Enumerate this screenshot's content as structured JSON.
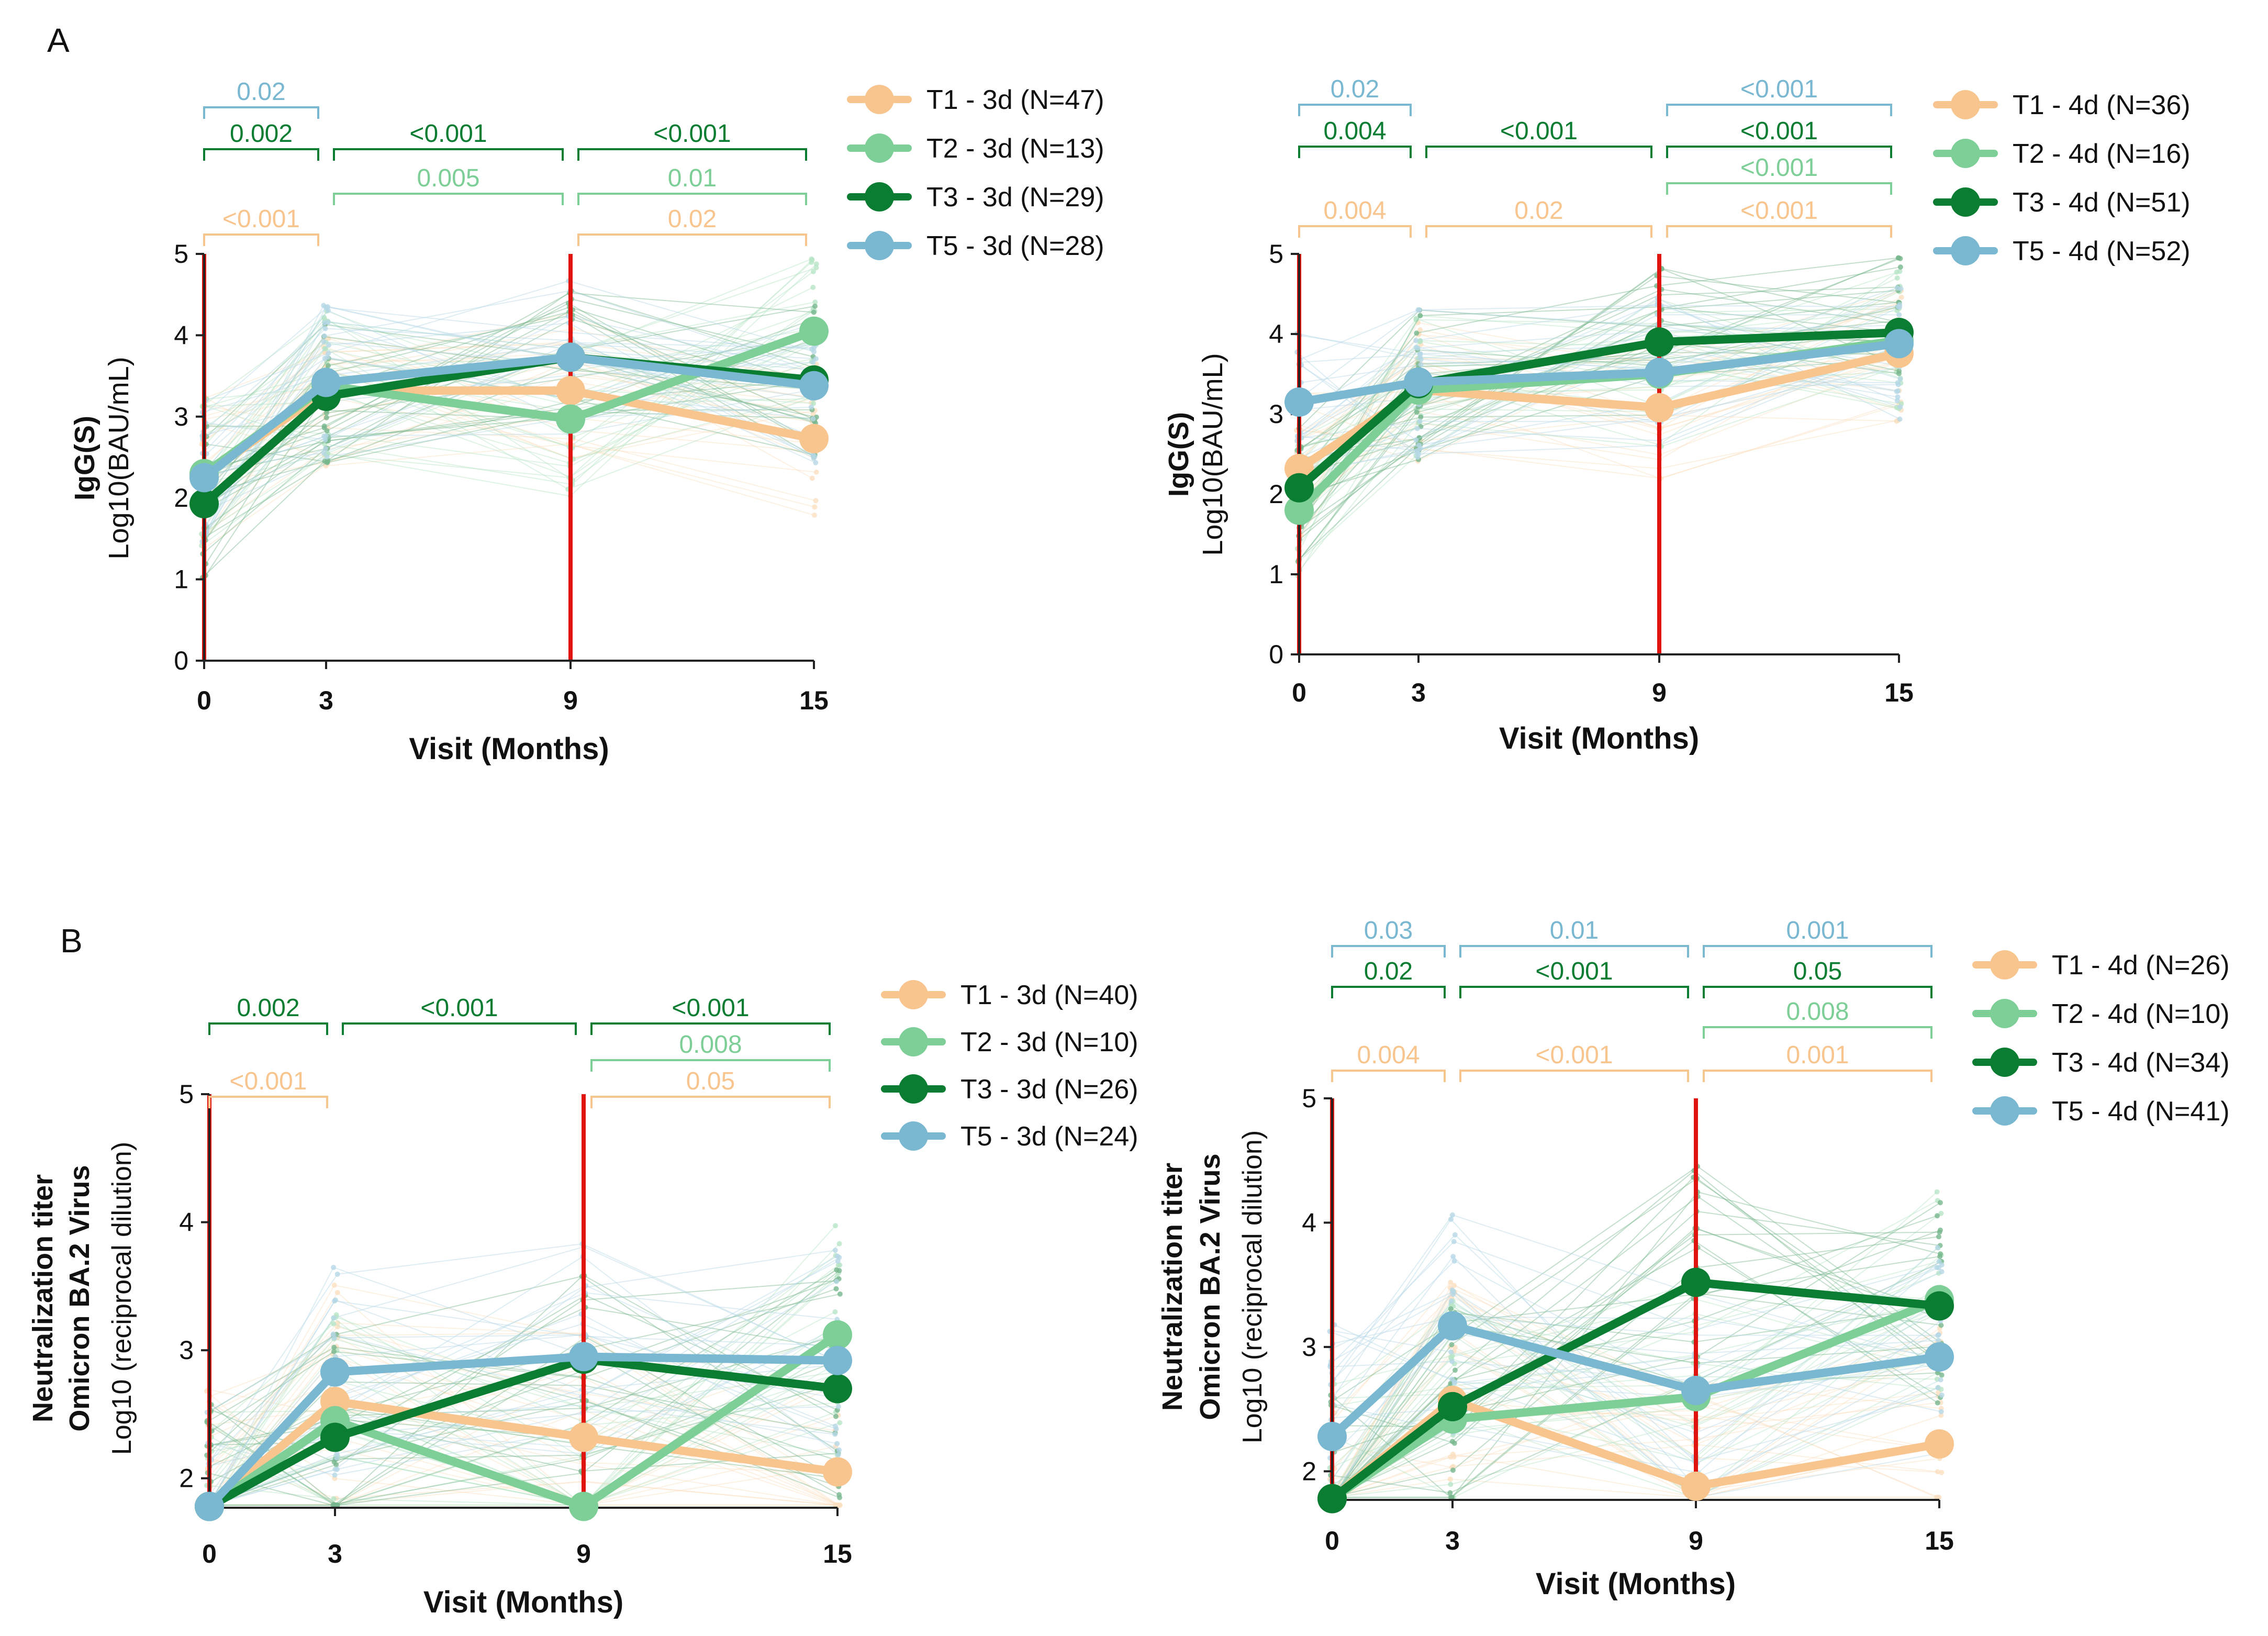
{
  "figure": {
    "panel_labels": [
      "A",
      "B"
    ],
    "colors": {
      "T1": "#f8c58f",
      "T2": "#7dcf97",
      "T3": "#0a7d32",
      "T5": "#7ab8d2",
      "red_line": "#e0140f",
      "axis": "#222222"
    }
  },
  "chart_data": [
    {
      "id": "A-3d",
      "type": "line",
      "ylabel_line1": "IgG(S)",
      "ylabel_line2": "Log10(BAU/mL)",
      "ylabel_sub": "",
      "xlabel": "Visit (Months)",
      "x": [
        0,
        3,
        9,
        15
      ],
      "x_tick_labels": [
        "0",
        "3",
        "9",
        "15"
      ],
      "ylim": [
        0,
        5
      ],
      "y_ticks": [
        0,
        1,
        2,
        3,
        4,
        5
      ],
      "y_tick_labels": [
        "0",
        "1",
        "2",
        "3",
        "4",
        "5"
      ],
      "red_lines_at_x": [
        0,
        9
      ],
      "series": [
        {
          "key": "T1",
          "name": "T1 - 3d (N=47)",
          "values": [
            2.28,
            3.32,
            3.32,
            2.73
          ]
        },
        {
          "key": "T2",
          "name": "T2 - 3d (N=13)",
          "values": [
            2.3,
            3.38,
            2.97,
            4.05
          ]
        },
        {
          "key": "T3",
          "name": "T3 - 3d (N=29)",
          "values": [
            1.93,
            3.25,
            3.73,
            3.45
          ]
        },
        {
          "key": "T5",
          "name": "T5 - 3d (N=28)",
          "values": [
            2.25,
            3.42,
            3.73,
            3.38
          ]
        }
      ],
      "brackets": [
        {
          "x1": 0,
          "x2": 3,
          "row": 0,
          "color": "T5",
          "label": "0.02"
        },
        {
          "x1": 0,
          "x2": 3,
          "row": 1,
          "color": "T3",
          "label": "0.002"
        },
        {
          "x1": 3,
          "x2": 9,
          "row": 1,
          "color": "T3",
          "label": "<0.001"
        },
        {
          "x1": 9,
          "x2": 15,
          "row": 1,
          "color": "T3",
          "label": "<0.001"
        },
        {
          "x1": 3,
          "x2": 9,
          "row": 2,
          "color": "T2",
          "label": "0.005"
        },
        {
          "x1": 9,
          "x2": 15,
          "row": 2,
          "color": "T2",
          "label": "0.01"
        },
        {
          "x1": 0,
          "x2": 3,
          "row": 3,
          "color": "T1",
          "label": "<0.001"
        },
        {
          "x1": 9,
          "x2": 15,
          "row": 3,
          "color": "T1",
          "label": "0.02"
        }
      ]
    },
    {
      "id": "A-4d",
      "type": "line",
      "ylabel_line1": "IgG(S)",
      "ylabel_line2": "Log10(BAU/mL)",
      "ylabel_sub": "",
      "xlabel": "Visit (Months)",
      "x": [
        0,
        3,
        9,
        15
      ],
      "x_tick_labels": [
        "0",
        "3",
        "9",
        "15"
      ],
      "ylim": [
        0,
        5
      ],
      "y_ticks": [
        0,
        1,
        2,
        3,
        4,
        5
      ],
      "y_tick_labels": [
        "0",
        "1",
        "2",
        "3",
        "4",
        "5"
      ],
      "red_lines_at_x": [
        0,
        9
      ],
      "series": [
        {
          "key": "T1",
          "name": "T1 - 4d (N=36)",
          "values": [
            2.32,
            3.3,
            3.08,
            3.76
          ]
        },
        {
          "key": "T2",
          "name": "T2 - 4d (N=16)",
          "values": [
            1.8,
            3.3,
            3.5,
            3.92
          ]
        },
        {
          "key": "T3",
          "name": "T3 - 4d (N=51)",
          "values": [
            2.08,
            3.38,
            3.9,
            4.02
          ]
        },
        {
          "key": "T5",
          "name": "T5 - 4d (N=52)",
          "values": [
            3.15,
            3.4,
            3.52,
            3.88
          ]
        }
      ],
      "brackets": [
        {
          "x1": 0,
          "x2": 3,
          "row": 0,
          "color": "T5",
          "label": "0.02"
        },
        {
          "x1": 9,
          "x2": 15,
          "row": 0,
          "color": "T5",
          "label": "<0.001"
        },
        {
          "x1": 0,
          "x2": 3,
          "row": 1,
          "color": "T3",
          "label": "0.004"
        },
        {
          "x1": 3,
          "x2": 9,
          "row": 1,
          "color": "T3",
          "label": "<0.001"
        },
        {
          "x1": 9,
          "x2": 15,
          "row": 1,
          "color": "T3",
          "label": "<0.001"
        },
        {
          "x1": 9,
          "x2": 15,
          "row": 2,
          "color": "T2",
          "label": "<0.001"
        },
        {
          "x1": 0,
          "x2": 3,
          "row": 3,
          "color": "T1",
          "label": "0.004"
        },
        {
          "x1": 3,
          "x2": 9,
          "row": 3,
          "color": "T1",
          "label": "0.02"
        },
        {
          "x1": 9,
          "x2": 15,
          "row": 3,
          "color": "T1",
          "label": "<0.001"
        }
      ]
    },
    {
      "id": "B-3d",
      "type": "line",
      "ylabel_line1": "Neutralization titer",
      "ylabel_line2": "Omicron BA.2 Virus",
      "ylabel_sub": "Log10 (reciprocal dilution)",
      "xlabel": "Visit (Months)",
      "x": [
        0,
        3,
        9,
        15
      ],
      "x_tick_labels": [
        "0",
        "3",
        "9",
        "15"
      ],
      "ylim": [
        1.77,
        5
      ],
      "y_ticks": [
        2,
        3,
        4,
        5
      ],
      "y_tick_labels": [
        "2",
        "3",
        "4",
        "5"
      ],
      "red_lines_at_x": [
        0,
        9
      ],
      "series": [
        {
          "key": "T1",
          "name": "T1 - 3d (N=40)",
          "values": [
            1.78,
            2.6,
            2.32,
            2.05
          ]
        },
        {
          "key": "T2",
          "name": "T2 - 3d (N=10)",
          "values": [
            1.78,
            2.45,
            1.78,
            3.12
          ]
        },
        {
          "key": "T3",
          "name": "T3 - 3d (N=26)",
          "values": [
            1.78,
            2.32,
            2.93,
            2.7
          ]
        },
        {
          "key": "T5",
          "name": "T5 - 3d (N=24)",
          "values": [
            1.78,
            2.83,
            2.95,
            2.92
          ]
        }
      ],
      "brackets": [
        {
          "x1": 9,
          "x2": 15,
          "row": 0,
          "color": "T5",
          "label": ""
        },
        {
          "x1": 0,
          "x2": 3,
          "row": 1,
          "color": "T3",
          "label": "0.002"
        },
        {
          "x1": 3,
          "x2": 9,
          "row": 1,
          "color": "T3",
          "label": "<0.001"
        },
        {
          "x1": 9,
          "x2": 15,
          "row": 1,
          "color": "T3",
          "label": "<0.001"
        },
        {
          "x1": 9,
          "x2": 15,
          "row": 2,
          "color": "T2",
          "label": "0.008"
        },
        {
          "x1": 0,
          "x2": 3,
          "row": 3,
          "color": "T1",
          "label": "<0.001"
        },
        {
          "x1": 9,
          "x2": 15,
          "row": 3,
          "color": "T1",
          "label": "0.05"
        }
      ]
    },
    {
      "id": "B-4d",
      "type": "line",
      "ylabel_line1": "Neutralization titer",
      "ylabel_line2": "Omicron BA.2 Virus",
      "ylabel_sub": "Log10 (reciprocal dilution)",
      "xlabel": "Visit (Months)",
      "x": [
        0,
        3,
        9,
        15
      ],
      "x_tick_labels": [
        "0",
        "3",
        "9",
        "15"
      ],
      "ylim": [
        1.77,
        5
      ],
      "y_ticks": [
        2,
        3,
        4,
        5
      ],
      "y_tick_labels": [
        "2",
        "3",
        "4",
        "5"
      ],
      "red_lines_at_x": [
        0,
        9
      ],
      "series": [
        {
          "key": "T1",
          "name": "T1 - 4d (N=26)",
          "values": [
            1.78,
            2.57,
            1.88,
            2.22
          ]
        },
        {
          "key": "T2",
          "name": "T2 - 4d (N=10)",
          "values": [
            1.78,
            2.42,
            2.6,
            3.38
          ]
        },
        {
          "key": "T3",
          "name": "T3 - 4d (N=34)",
          "values": [
            1.78,
            2.52,
            3.52,
            3.33
          ]
        },
        {
          "key": "T5",
          "name": "T5 - 4d (N=41)",
          "values": [
            2.28,
            3.17,
            2.65,
            2.92
          ]
        }
      ],
      "brackets": [
        {
          "x1": 0,
          "x2": 3,
          "row": 0,
          "color": "T5",
          "label": "0.03"
        },
        {
          "x1": 3,
          "x2": 9,
          "row": 0,
          "color": "T5",
          "label": "0.01"
        },
        {
          "x1": 9,
          "x2": 15,
          "row": 0,
          "color": "T5",
          "label": "0.001"
        },
        {
          "x1": 0,
          "x2": 3,
          "row": 1,
          "color": "T3",
          "label": "0.02"
        },
        {
          "x1": 3,
          "x2": 9,
          "row": 1,
          "color": "T3",
          "label": "<0.001"
        },
        {
          "x1": 9,
          "x2": 15,
          "row": 1,
          "color": "T3",
          "label": "0.05"
        },
        {
          "x1": 9,
          "x2": 15,
          "row": 2,
          "color": "T2",
          "label": "0.008"
        },
        {
          "x1": 0,
          "x2": 3,
          "row": 3,
          "color": "T1",
          "label": "0.004"
        },
        {
          "x1": 3,
          "x2": 9,
          "row": 3,
          "color": "T1",
          "label": "<0.001"
        },
        {
          "x1": 9,
          "x2": 15,
          "row": 3,
          "color": "T1",
          "label": "0.001"
        }
      ]
    }
  ]
}
